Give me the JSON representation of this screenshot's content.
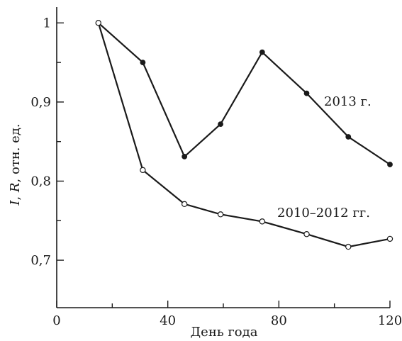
{
  "chart_data": {
    "type": "line",
    "xlabel": "День года",
    "ylabel": {
      "var1": "I",
      "sep": ", ",
      "var2": "R",
      "rest": ", отн. ед."
    },
    "xlim": [
      0,
      120
    ],
    "ylim": [
      0.64,
      1.02
    ],
    "x_ticks": [
      0,
      40,
      80,
      120
    ],
    "x_tick_labels": [
      "0",
      "40",
      "80",
      "120"
    ],
    "y_ticks": [
      0.7,
      0.8,
      0.9,
      1.0
    ],
    "y_tick_labels": [
      "0,7",
      "0,8",
      "0,9",
      "1"
    ],
    "x_minor_ticks": [
      20,
      60,
      100
    ],
    "y_minor_ticks": [
      0.75,
      0.85,
      0.95
    ],
    "grid": false,
    "series": [
      {
        "name": "2013 г.",
        "marker": "filled-circle",
        "color": "#1a1a1a",
        "x": [
          15,
          31,
          46,
          59,
          74,
          90,
          105,
          120
        ],
        "y": [
          1.0,
          0.95,
          0.831,
          0.872,
          0.963,
          0.911,
          0.856,
          0.821
        ]
      },
      {
        "name": "2010–2012 гг.",
        "marker": "open-circle",
        "color": "#1a1a1a",
        "x": [
          15,
          31,
          46,
          59,
          74,
          90,
          105,
          120
        ],
        "y": [
          1.0,
          0.814,
          0.771,
          0.758,
          0.749,
          0.733,
          0.717,
          0.727
        ]
      }
    ]
  }
}
